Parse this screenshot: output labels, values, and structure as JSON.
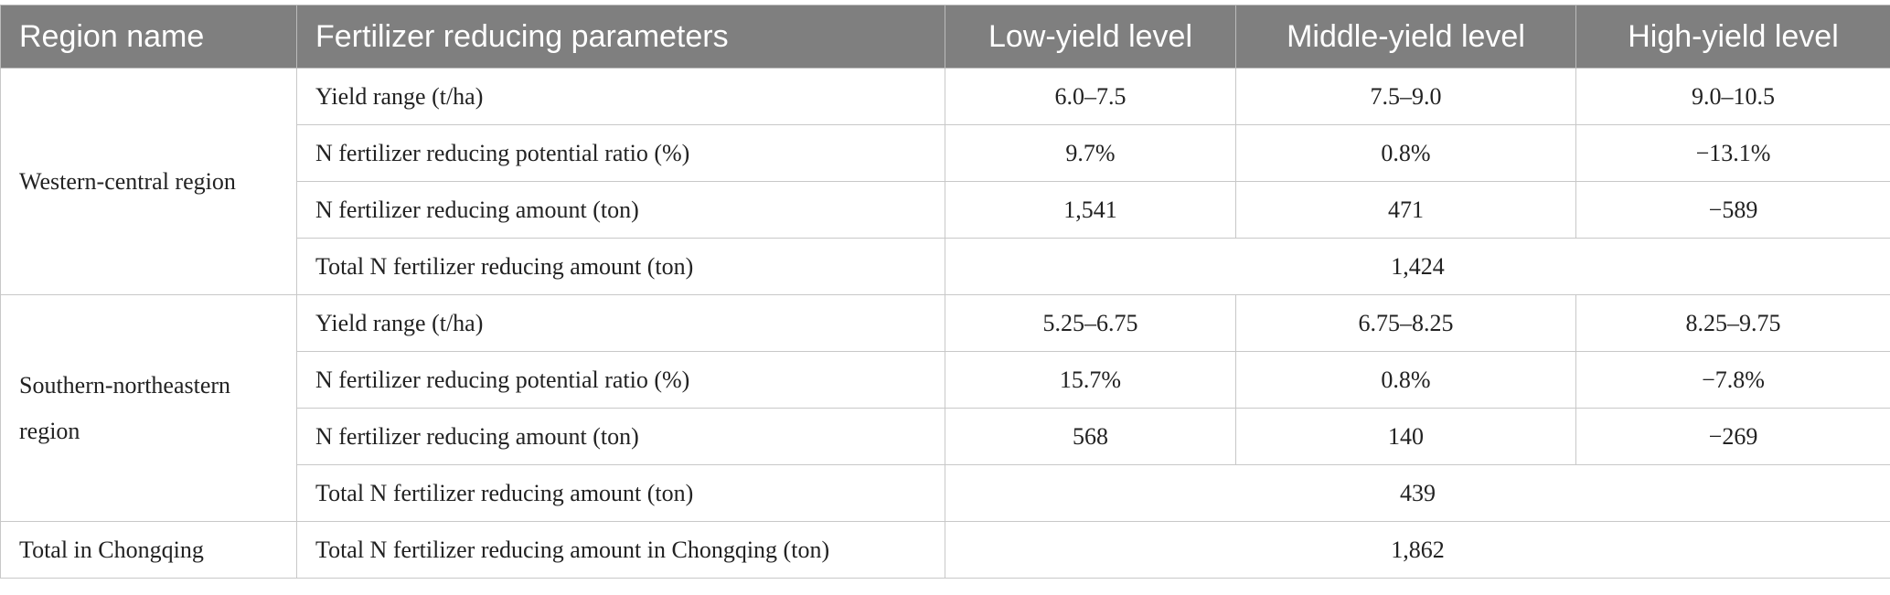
{
  "table": {
    "header": [
      "Region name",
      "Fertilizer reducing parameters",
      "Low-yield level",
      "Middle-yield level",
      "High-yield level"
    ],
    "groups": [
      {
        "region": "Western-central region",
        "rows": [
          [
            "Yield range (t/ha)",
            "6.0–7.5",
            "7.5–9.0",
            "9.0–10.5"
          ],
          [
            "N fertilizer reducing potential ratio (%)",
            "9.7%",
            "0.8%",
            "−13.1%"
          ],
          [
            "N fertilizer reducing amount (ton)",
            "1,541",
            "471",
            "−589"
          ]
        ],
        "total": [
          "Total N fertilizer reducing amount (ton)",
          "1,424"
        ]
      },
      {
        "region": "Southern-northeastern region",
        "rows": [
          [
            "Yield range (t/ha)",
            "5.25–6.75",
            "6.75–8.25",
            "8.25–9.75"
          ],
          [
            "N fertilizer reducing potential ratio (%)",
            "15.7%",
            "0.8%",
            "−7.8%"
          ],
          [
            "N fertilizer reducing amount (ton)",
            "568",
            "140",
            "−269"
          ]
        ],
        "total": [
          "Total N fertilizer reducing amount (ton)",
          "439"
        ]
      },
      {
        "region": "Total in Chongqing",
        "rows": [],
        "total": [
          "Total N fertilizer reducing amount in Chongqing (ton)",
          "1,862"
        ]
      }
    ]
  }
}
